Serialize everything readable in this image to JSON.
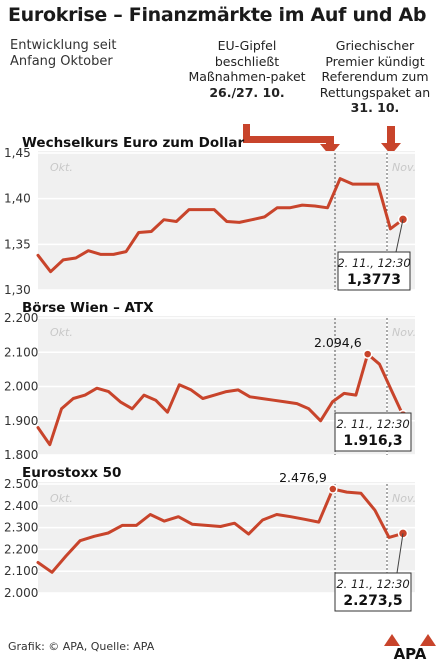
{
  "header": {
    "title": "Eurokrise – Finanzmärkte im Auf und Ab",
    "subtitle": "Entwicklung seit Anfang Oktober"
  },
  "annotations": {
    "eu_summit": {
      "text": "EU-Gipfel beschließt Maßnahmen-paket",
      "date": "26./27. 10."
    },
    "greek_pm": {
      "text": "Griechischer Premier kündigt Referendum zum Rettungspaket an",
      "date": "31. 10."
    }
  },
  "footer": {
    "credit": "Grafik: © APA, Quelle: APA",
    "logo": "APA"
  },
  "colors": {
    "line": "#c8442b",
    "panel_bg": "#f0f0f0",
    "marker_fill": "#c8442b"
  },
  "chart_data": [
    {
      "type": "line",
      "title": "Wechselkurs Euro zum Dollar",
      "month_labels": [
        "Okt.",
        "Nov."
      ],
      "yticks": [
        "1,45",
        "1,40",
        "1,35",
        "1,30"
      ],
      "ylim": [
        1.3,
        1.45
      ],
      "values": [
        1.338,
        1.32,
        1.333,
        1.335,
        1.343,
        1.339,
        1.339,
        1.342,
        1.363,
        1.364,
        1.377,
        1.375,
        1.388,
        1.388,
        1.388,
        1.375,
        1.374,
        1.377,
        1.38,
        1.39,
        1.39,
        1.393,
        1.392,
        1.39,
        1.422,
        1.416,
        1.416,
        1.416,
        1.367,
        1.3773
      ],
      "highlight": {
        "label": "2. 11., 12:30",
        "value": "1,3773"
      }
    },
    {
      "type": "line",
      "title": "Börse Wien – ATX",
      "month_labels": [
        "Okt.",
        "Nov."
      ],
      "yticks": [
        "2.200",
        "2.100",
        "2.000",
        "1.900",
        "1.800"
      ],
      "ylim": [
        1800,
        2200
      ],
      "values": [
        1880,
        1830,
        1935,
        1965,
        1975,
        1995,
        1985,
        1955,
        1935,
        1975,
        1960,
        1925,
        2005,
        1990,
        1965,
        1975,
        1985,
        1990,
        1970,
        1965,
        1960,
        1955,
        1950,
        1935,
        1900,
        1955,
        1980,
        1975,
        2094.6,
        2065,
        1990,
        1916.3
      ],
      "peak": {
        "value": "2.094,6"
      },
      "highlight": {
        "label": "2. 11., 12:30",
        "value": "1.916,3"
      }
    },
    {
      "type": "line",
      "title": "Eurostoxx 50",
      "month_labels": [
        "Okt.",
        "Nov."
      ],
      "yticks": [
        "2.500",
        "2.400",
        "2.300",
        "2.200",
        "2.100",
        "2.000"
      ],
      "ylim": [
        2000,
        2500
      ],
      "values": [
        2140,
        2095,
        2170,
        2240,
        2260,
        2275,
        2310,
        2310,
        2360,
        2330,
        2350,
        2315,
        2310,
        2305,
        2320,
        2270,
        2335,
        2360,
        2350,
        2338,
        2325,
        2476.9,
        2463,
        2458,
        2380,
        2255,
        2273.5
      ],
      "peak": {
        "value": "2.476,9"
      },
      "highlight": {
        "label": "2. 11., 12:30",
        "value": "2.273,5"
      }
    }
  ]
}
